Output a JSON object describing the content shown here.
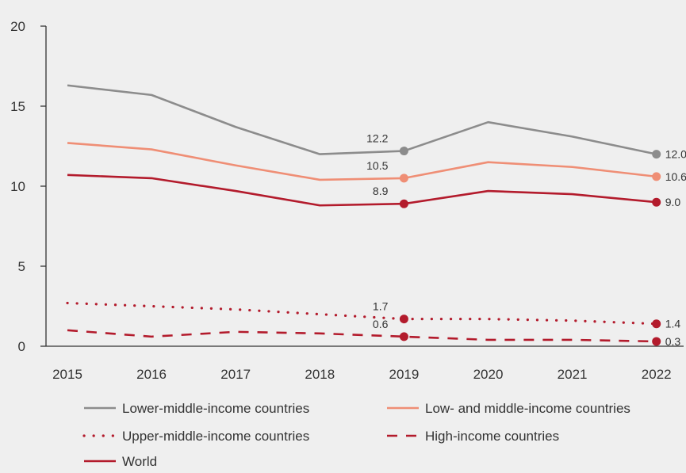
{
  "chart_data": {
    "type": "line",
    "x": [
      "2015",
      "2016",
      "2017",
      "2018",
      "2019",
      "2020",
      "2021",
      "2022"
    ],
    "ylim": [
      0,
      20
    ],
    "yticks": [
      0,
      5,
      10,
      15,
      20
    ],
    "grid": false,
    "legend_position": "bottom",
    "series": [
      {
        "name": "Lower-middle-income countries",
        "values": [
          16.3,
          15.7,
          13.7,
          12.0,
          12.2,
          14.0,
          13.1,
          12.0
        ],
        "color": "#8c8c8c",
        "style": "solid",
        "labels": [
          {
            "index": 4,
            "text": "12.2",
            "marker": true
          },
          {
            "index": 7,
            "text": "12.0",
            "marker": true
          }
        ]
      },
      {
        "name": "Low- and middle-income countries",
        "values": [
          12.7,
          12.3,
          11.3,
          10.4,
          10.5,
          11.5,
          11.2,
          10.6
        ],
        "color": "#ef8e75",
        "style": "solid",
        "labels": [
          {
            "index": 4,
            "text": "10.5",
            "marker": true
          },
          {
            "index": 7,
            "text": "10.6",
            "marker": true
          }
        ]
      },
      {
        "name": "World",
        "values": [
          10.7,
          10.5,
          9.7,
          8.8,
          8.9,
          9.7,
          9.5,
          9.0
        ],
        "color": "#b31b2c",
        "style": "solid",
        "labels": [
          {
            "index": 4,
            "text": "8.9",
            "marker": true
          },
          {
            "index": 7,
            "text": "9.0",
            "marker": true
          }
        ]
      },
      {
        "name": "Upper-middle-income countries",
        "values": [
          2.7,
          2.5,
          2.3,
          2.0,
          1.7,
          1.7,
          1.6,
          1.4
        ],
        "color": "#b31b2c",
        "style": "dotted",
        "labels": [
          {
            "index": 4,
            "text": "1.7",
            "marker": true
          },
          {
            "index": 7,
            "text": "1.4",
            "marker": true
          }
        ]
      },
      {
        "name": "High-income countries",
        "values": [
          1.0,
          0.6,
          0.9,
          0.8,
          0.6,
          0.4,
          0.4,
          0.3
        ],
        "color": "#b31b2c",
        "style": "dashed",
        "labels": [
          {
            "index": 4,
            "text": "0.6",
            "marker": true
          },
          {
            "index": 7,
            "text": "0.3",
            "marker": true
          }
        ]
      }
    ],
    "legend": [
      {
        "series": 0
      },
      {
        "series": 1
      },
      {
        "series": 3
      },
      {
        "series": 4
      },
      {
        "series": 2
      }
    ]
  }
}
